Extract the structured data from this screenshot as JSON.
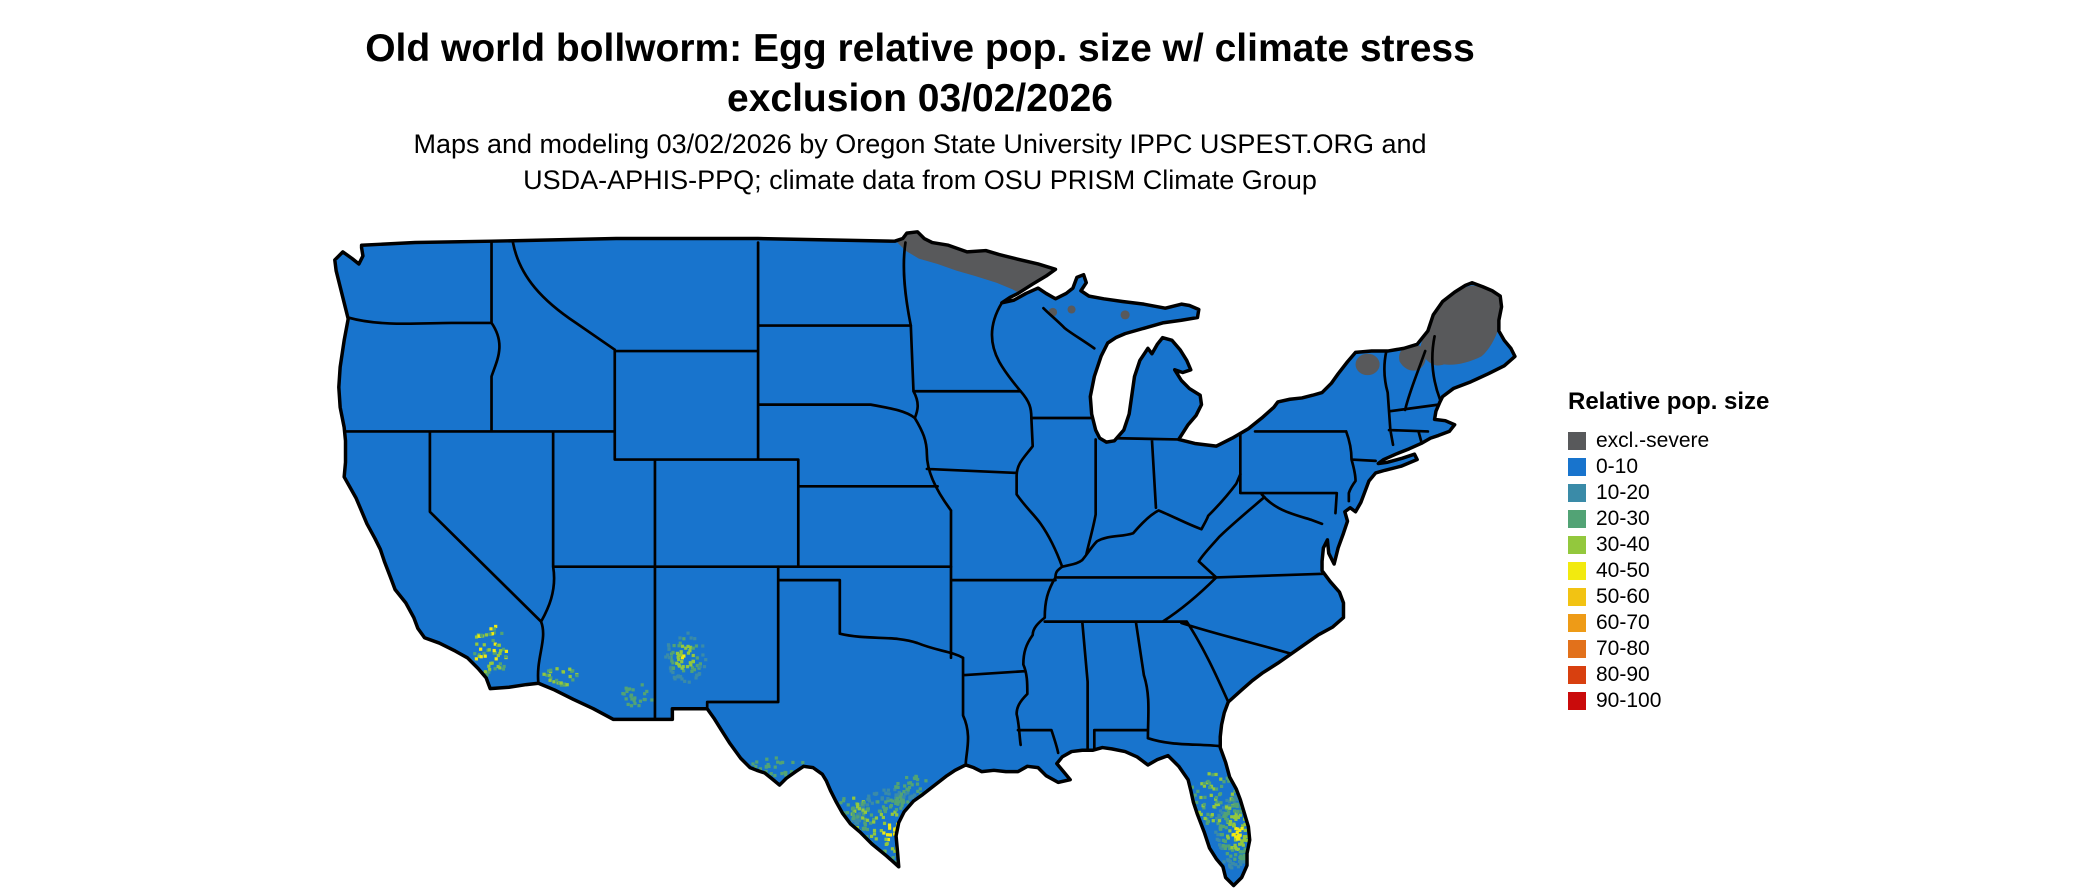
{
  "title": {
    "line1": "Old world bollworm: Egg relative pop. size w/ climate stress",
    "line2": "exclusion 03/02/2026"
  },
  "subtitle": {
    "line1": "Maps and modeling 03/02/2026 by Oregon State University IPPC USPEST.ORG and",
    "line2": "USDA-APHIS-PPQ; climate data from OSU PRISM Climate Group"
  },
  "legend": {
    "title": "Relative pop. size",
    "items": [
      {
        "label": "excl.-severe",
        "color": "#58595B"
      },
      {
        "label": "0-10",
        "color": "#1874CD"
      },
      {
        "label": "10-20",
        "color": "#3A8BA8"
      },
      {
        "label": "20-30",
        "color": "#52A375"
      },
      {
        "label": "30-40",
        "color": "#93C83D"
      },
      {
        "label": "40-50",
        "color": "#F2EA0F"
      },
      {
        "label": "50-60",
        "color": "#F2C313"
      },
      {
        "label": "60-70",
        "color": "#EE9B17"
      },
      {
        "label": "70-80",
        "color": "#E2711B"
      },
      {
        "label": "80-90",
        "color": "#D8400F"
      },
      {
        "label": "90-100",
        "color": "#CA0B0B"
      }
    ]
  },
  "map": {
    "type": "choropleth",
    "region": "contiguous United States",
    "dominant_category": "0-10",
    "excluded_severe_areas": [
      "northern Minnesota",
      "Maine and northern New England",
      "Adirondacks (northern New York)"
    ],
    "higher_population_areas": [
      "southern Texas (Rio Grande Valley)",
      "southern Florida",
      "southern California",
      "southern Arizona / New Mexico border region"
    ]
  }
}
